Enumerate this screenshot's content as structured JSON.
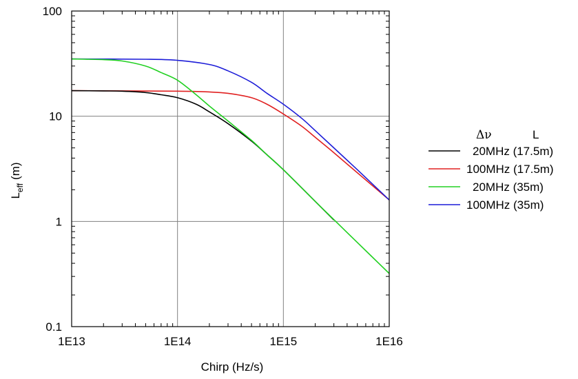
{
  "chart_data": {
    "type": "line",
    "xlabel": "Chirp (Hz/s)",
    "ylabel_main": "L",
    "ylabel_sub": "eff",
    "ylabel_unit": "(m)",
    "xscale": "log",
    "yscale": "log",
    "xlim": [
      10000000000000.0,
      1e+16
    ],
    "ylim": [
      0.1,
      100
    ],
    "grid": true,
    "legend_position": "right",
    "legend_headers": {
      "col1": "Δν",
      "col2": "L"
    },
    "x_ticks": [
      {
        "value": 10000000000000.0,
        "label": "1E13"
      },
      {
        "value": 100000000000000.0,
        "label": "1E14"
      },
      {
        "value": 1000000000000000.0,
        "label": "1E15"
      },
      {
        "value": 1e+16,
        "label": "1E16"
      }
    ],
    "y_ticks": [
      {
        "value": 0.1,
        "label": "0.1"
      },
      {
        "value": 1,
        "label": "1"
      },
      {
        "value": 10,
        "label": "10"
      },
      {
        "value": 100,
        "label": "100"
      }
    ],
    "series": [
      {
        "name": "20MHz (17.5m)",
        "color": "#000000",
        "x": [
          10000000000000.0,
          20000000000000.0,
          30000000000000.0,
          50000000000000.0,
          70000000000000.0,
          100000000000000.0,
          150000000000000.0,
          200000000000000.0,
          300000000000000.0,
          500000000000000.0,
          700000000000000.0,
          1000000000000000.0,
          2000000000000000.0,
          3000000000000000.0
        ],
        "y": [
          17.5,
          17.4,
          17.3,
          16.8,
          16.0,
          15.0,
          13.0,
          11.0,
          8.5,
          5.8,
          4.3,
          3.1,
          1.55,
          1.03
        ]
      },
      {
        "name": "100MHz (17.5m)",
        "color": "#e02020",
        "x": [
          10000000000000.0,
          100000000000000.0,
          200000000000000.0,
          300000000000000.0,
          500000000000000.0,
          700000000000000.0,
          1000000000000000.0,
          1500000000000000.0,
          2000000000000000.0,
          3000000000000000.0,
          5000000000000000.0,
          1e+16
        ],
        "y": [
          17.5,
          17.3,
          17.0,
          16.5,
          15.0,
          13.0,
          10.5,
          8.0,
          6.3,
          4.5,
          2.9,
          1.6
        ]
      },
      {
        "name": "20MHz (35m)",
        "color": "#20d020",
        "x": [
          10000000000000.0,
          20000000000000.0,
          30000000000000.0,
          50000000000000.0,
          70000000000000.0,
          100000000000000.0,
          150000000000000.0,
          200000000000000.0,
          300000000000000.0,
          500000000000000.0,
          700000000000000.0,
          1000000000000000.0,
          2000000000000000.0,
          3000000000000000.0,
          5000000000000000.0,
          1e+16
        ],
        "y": [
          35.0,
          34.5,
          33.5,
          30.0,
          26.0,
          22.0,
          16.0,
          12.5,
          9.0,
          5.9,
          4.3,
          3.1,
          1.55,
          1.04,
          0.63,
          0.32
        ]
      },
      {
        "name": "100MHz (35m)",
        "color": "#1c1cd8",
        "x": [
          10000000000000.0,
          50000000000000.0,
          100000000000000.0,
          200000000000000.0,
          300000000000000.0,
          500000000000000.0,
          700000000000000.0,
          1000000000000000.0,
          1500000000000000.0,
          2000000000000000.0,
          3000000000000000.0,
          5000000000000000.0,
          1e+16
        ],
        "y": [
          35.0,
          34.8,
          34.0,
          31.0,
          27.0,
          21.0,
          16.5,
          13.0,
          9.5,
          7.3,
          5.0,
          3.1,
          1.6
        ]
      }
    ]
  }
}
